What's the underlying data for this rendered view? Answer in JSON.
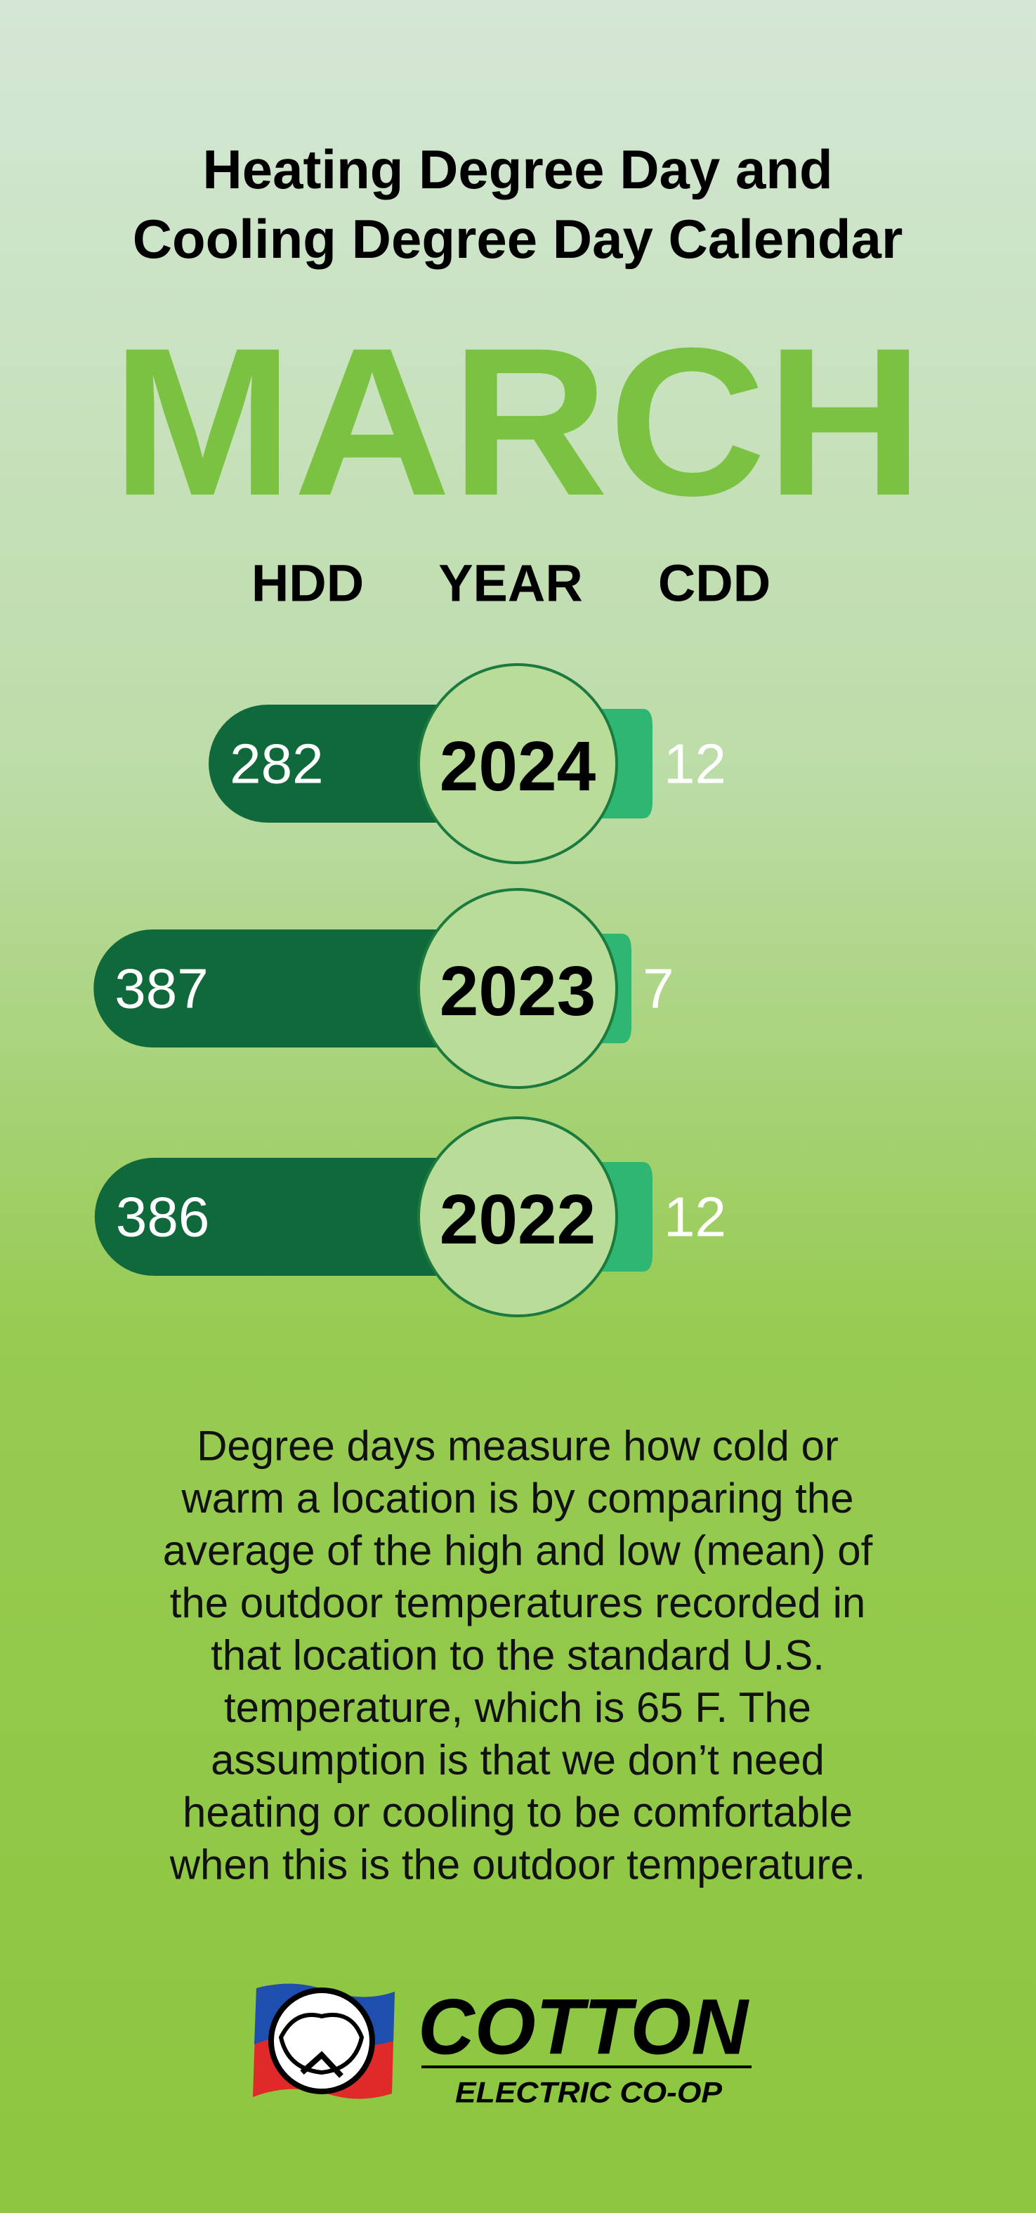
{
  "header": {
    "title": [
      "Heating Degree Day and",
      "Cooling Degree Day Calendar"
    ]
  },
  "chart_data": {
    "type": "bar",
    "title": "MARCH",
    "category_label": "YEAR",
    "categories": [
      "2024",
      "2023",
      "2022"
    ],
    "series": [
      {
        "name": "HDD",
        "color": "#10693b",
        "values": [
          282,
          387,
          386
        ]
      },
      {
        "name": "CDD",
        "color": "#2db772",
        "values": [
          12,
          7,
          12
        ]
      }
    ]
  },
  "description": [
    "Degree days measure how cold or",
    "warm a location is by comparing the",
    "average of the high and low (mean) of",
    "the outdoor temperatures recorded in",
    "that location to the standard U.S.",
    "temperature, which is 65 F. The",
    "assumption is that we don’t need",
    "heating or cooling to be comfortable",
    "when this is the outdoor temperature."
  ],
  "logo": {
    "name": "COTTON",
    "subtitle": "ELECTRIC CO-OP"
  }
}
